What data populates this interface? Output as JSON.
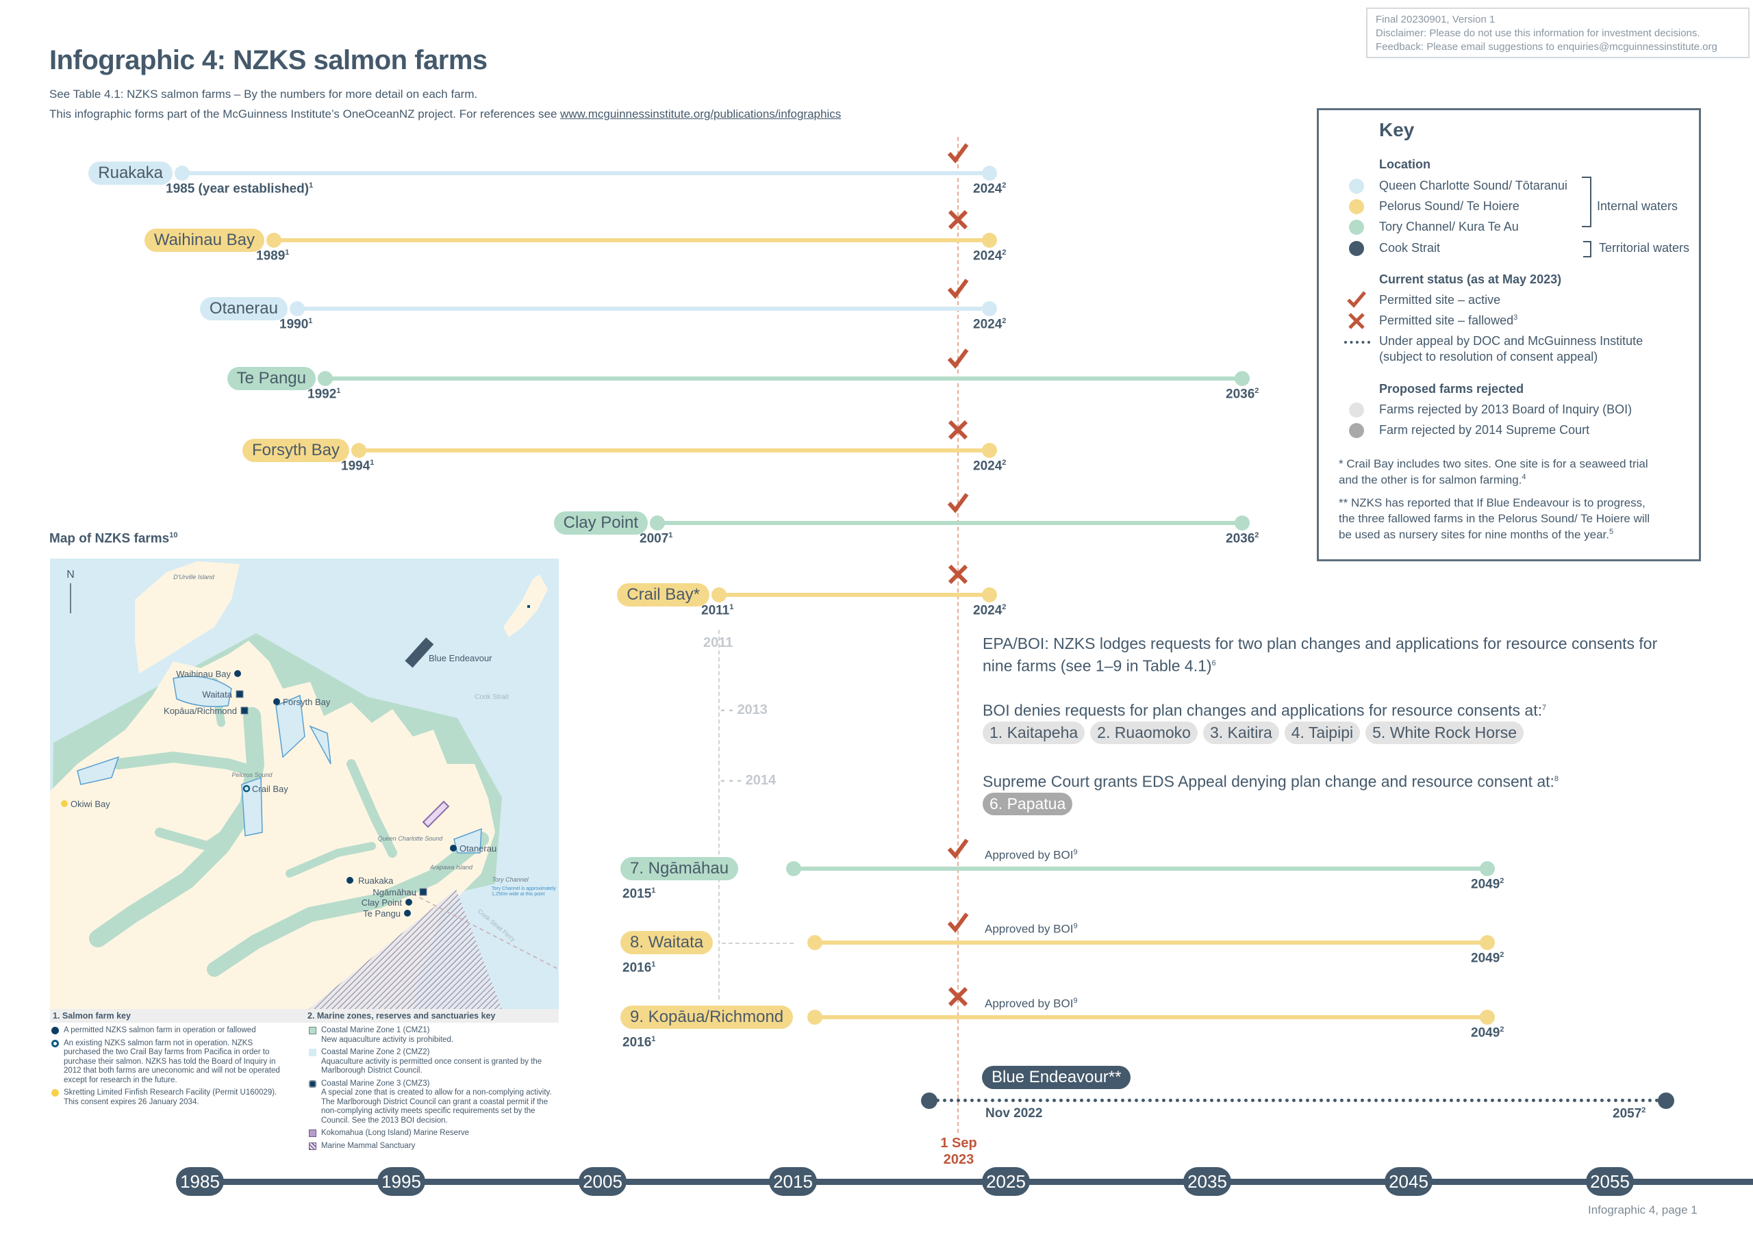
{
  "header": {
    "title": "Infographic 4: NZKS salmon farms",
    "subtitle_line1": "See Table 4.1: NZKS salmon farms – By the numbers for more detail on each farm.",
    "subtitle_line2": "This infographic forms part of the McGuinness Institute’s OneOceanNZ project. For references see ",
    "link": "www.mcguinnessinstitute.org/publications/infographics"
  },
  "disclaimer": {
    "version": "Final 20230901, Version 1",
    "disclaimer": "Disclaimer: Please do not use this information for investment decisions.",
    "feedback": "Feedback: Please email suggestions to enquiries@mcguinnessinstitute.org"
  },
  "colors": {
    "queen_charlotte": "#d3e9f4",
    "pelorus": "#f5d98a",
    "tory": "#b4dcc9",
    "cook_strait": "#44596b",
    "status_red": "#c0553a",
    "rejected_boi": "#e3e3e3",
    "rejected_sc": "#a9a9a9"
  },
  "farms": [
    {
      "name": "Ruakaka",
      "location": "queen_charlotte",
      "start": 1985,
      "start_label": "1985 (year established)",
      "start_sup": "1",
      "end": 2024,
      "end_label": "2024",
      "end_sup": "2",
      "status": "active"
    },
    {
      "name": "Waihinau Bay",
      "location": "pelorus",
      "start": 1989,
      "start_label": "1989",
      "start_sup": "1",
      "end": 2024,
      "end_label": "2024",
      "end_sup": "2",
      "status": "fallowed"
    },
    {
      "name": "Otanerau",
      "location": "queen_charlotte",
      "start": 1990,
      "start_label": "1990",
      "start_sup": "1",
      "end": 2024,
      "end_label": "2024",
      "end_sup": "2",
      "status": "active"
    },
    {
      "name": "Te Pangu",
      "location": "tory",
      "start": 1992,
      "start_label": "1992",
      "start_sup": "1",
      "end": 2036,
      "end_label": "2036",
      "end_sup": "2",
      "status": "active"
    },
    {
      "name": "Forsyth Bay",
      "location": "pelorus",
      "start": 1994,
      "start_label": "1994",
      "start_sup": "1",
      "end": 2024,
      "end_label": "2024",
      "end_sup": "2",
      "status": "fallowed"
    },
    {
      "name": "Clay Point",
      "location": "tory",
      "start": 2007,
      "start_label": "2007",
      "start_sup": "1",
      "end": 2036,
      "end_label": "2036",
      "end_sup": "2",
      "status": "active"
    },
    {
      "name": "Crail Bay*",
      "location": "pelorus",
      "start": 2011,
      "start_label": "2011",
      "start_sup": "1",
      "end": 2024,
      "end_label": "2024",
      "end_sup": "2",
      "status": "fallowed"
    },
    {
      "name": "7. Ngāmāhau",
      "location": "tory",
      "start": 2015,
      "start_label": "2015",
      "start_sup": "1",
      "end": 2049,
      "end_label": "2049",
      "end_sup": "2",
      "status": "active",
      "note": "Approved by BOI",
      "note_sup": "9"
    },
    {
      "name": "8. Waitata",
      "location": "pelorus",
      "start": 2016,
      "start_label": "2016",
      "start_sup": "1",
      "end": 2049,
      "end_label": "2049",
      "end_sup": "2",
      "status": "active",
      "note": "Approved by BOI",
      "note_sup": "9"
    },
    {
      "name": "9. Kopāua/Richmond",
      "location": "pelorus",
      "start": 2016,
      "start_label": "2016",
      "start_sup": "1",
      "end": 2049,
      "end_label": "2049",
      "end_sup": "2",
      "status": "fallowed",
      "note": "Approved by BOI",
      "note_sup": "9"
    }
  ],
  "current_date_marker": {
    "line1": "1 Sep",
    "line2": "2023"
  },
  "milestones": [
    "2011",
    "2013",
    "2014"
  ],
  "events": {
    "epa_text": "EPA/BOI: NZKS lodges requests for two plan changes and applications for resource consents for nine farms (see 1–9 in Table 4.1)",
    "epa_sup": "6",
    "boi_text": "BOI denies requests for plan changes and applications for resource consents at:",
    "boi_sup": "7",
    "boi_rejected": [
      "1. Kaitapeha",
      "2. Ruaomoko",
      "3. Kaitira",
      "4. Taipipi",
      "5. White Rock Horse"
    ],
    "sc_text": "Supreme Court grants EDS Appeal denying plan change and resource  consent at:",
    "sc_sup": "8",
    "sc_rejected": [
      "6. Papatua"
    ]
  },
  "blue_endeavour": {
    "name": "Blue Endeavour**",
    "start": 2022.83,
    "start_label": "Nov 2022",
    "end": 2057,
    "end_label": "2057",
    "end_sup": "2",
    "status": "under_appeal"
  },
  "axis": {
    "ticks": [
      "1985",
      "1995",
      "2005",
      "2015",
      "2025",
      "2035",
      "2045",
      "2055"
    ]
  },
  "key": {
    "title": "Key",
    "location_heading": "Location",
    "locations": [
      "Queen Charlotte Sound/ Tōtaranui",
      "Pelorus Sound/ Te Hoiere",
      "Tory Channel/ Kura Te Au",
      "Cook Strait"
    ],
    "internal_waters": "Internal waters",
    "territorial_waters": "Territorial waters",
    "status_heading": "Current status (as at May 2023)",
    "active": "Permitted site – active",
    "fallowed": "Permitted site – fallowed",
    "fallowed_sup": "3",
    "appeal_line1": "Under appeal by DOC and McGuinness Institute",
    "appeal_line2": "(subject to resolution of consent appeal)",
    "rejected_heading": "Proposed farms rejected",
    "rejected_boi": "Farms rejected by 2013 Board of Inquiry (BOI)",
    "rejected_sc": "Farm rejected by 2014 Supreme Court",
    "note1_line1": "* Crail Bay includes two sites. One site is for a seaweed trial",
    "note1_line2": "and the other is for salmon farming.",
    "note1_sup": "4",
    "note2_line1": "** NZKS has reported that If Blue Endeavour is to progress,",
    "note2_line2": "the three fallowed farms in the Pelorus Sound/ Te Hoiere will",
    "note2_line3": "be used as nursery sites for nine months of the year.",
    "note2_sup": "5"
  },
  "map": {
    "title": "Map of NZKS farms",
    "title_sup": "10",
    "north": "N",
    "places": {
      "durville": "D'Urville Island",
      "pelorus": "Pelorus Sound",
      "qcs": "Queen Charlotte Sound",
      "arapawa": "Arapawa Island",
      "tory": "Tory Channel",
      "tory_note1": "Tory Channel is approximately",
      "tory_note2": "1,250m wide at this point",
      "cook": "Cook Strait",
      "ferry": "Cook Strait Ferry"
    },
    "farms": {
      "waihinau": "Waihinau Bay",
      "waitata": "Waitata",
      "kopaua": "Kopāua/Richmond",
      "forsyth": "Forsyth Bay",
      "crail": "Crail Bay",
      "okiwi": "Okiwi Bay",
      "otanerau": "Otanerau",
      "ruakaka": "Ruakaka",
      "ngamahau": "Ngāmāhau",
      "clay": "Clay Point",
      "tepangu": "Te Pangu",
      "blue": "Blue Endeavour"
    },
    "legend": {
      "farm_heading": "1.   Salmon farm key",
      "farm_items": [
        "A permitted NZKS salmon farm in operation or fallowed",
        "An existing NZKS salmon farm not in operation. NZKS purchased the two Crail Bay farms from Pacifica in order to purchase their salmon. NZKS has told the Board of Inquiry in 2012 that both farms are uneconomic and will not be operated except for research in the future.",
        "Skretting Limited Finfish Research Facility (Permit U160029). This consent expires 26 January 2034."
      ],
      "zone_heading": "2.   Marine zones, reserves and sanctuaries key",
      "zone_items": [
        {
          "name": "Coastal Marine Zone 1 (CMZ1)",
          "desc": "New aquaculture activity is prohibited."
        },
        {
          "name": "Coastal Marine Zone 2  (CMZ2)",
          "desc": "Aquaculture activity is permitted once consent is granted by the Marlborough District Council."
        },
        {
          "name": "Coastal Marine Zone 3 (CMZ3)",
          "desc": "A special zone that is created to allow for a non-complying activity. The Marlborough District Council can grant a coastal permit if the non-complying activity meets specific requirements set by the Council. See the 2013 BOI decision."
        },
        {
          "name": "Kokomahua (Long Island) Marine Reserve",
          "desc": ""
        },
        {
          "name": "Marine Mammal Sanctuary",
          "desc": ""
        }
      ]
    }
  },
  "footer": {
    "page_label": "Infographic 4, page 1"
  }
}
